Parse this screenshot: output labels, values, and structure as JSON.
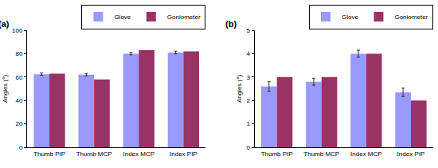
{
  "chart_data": [
    {
      "type": "bar",
      "title": "(a)",
      "categories": [
        "Thumb PIP",
        "Thumb MCP",
        "Index MCP",
        "Index PIP"
      ],
      "series": [
        {
          "name": "Glove",
          "color": "#9999ff",
          "values": [
            62.5,
            62,
            80,
            81
          ],
          "error": [
            1,
            1,
            1,
            1.2
          ]
        },
        {
          "name": "Goniometer",
          "color": "#993366",
          "values": [
            63,
            58,
            83,
            82
          ]
        }
      ],
      "y_label": "Angles (°)",
      "ylim": [
        0,
        100
      ],
      "yticks": [
        0,
        20,
        40,
        60,
        80,
        100
      ],
      "grid": false,
      "legend": "upper right"
    },
    {
      "type": "bar",
      "title": "(b)",
      "categories": [
        "Thumb PIP",
        "Thumb MCP",
        "Index MCP",
        "Index PIP"
      ],
      "series": [
        {
          "name": "Glove",
          "color": "#9999ff",
          "values": [
            2.6,
            2.8,
            4.0,
            2.35
          ],
          "error": [
            0.2,
            0.15,
            0.15,
            0.18
          ]
        },
        {
          "name": "Goniometer",
          "color": "#993366",
          "values": [
            3,
            3,
            4,
            2
          ]
        }
      ],
      "y_label": "Angles (°)",
      "ylim": [
        0,
        5
      ],
      "yticks": [
        0,
        1,
        2,
        3,
        4,
        5
      ],
      "grid": false,
      "legend": "upper right"
    }
  ]
}
